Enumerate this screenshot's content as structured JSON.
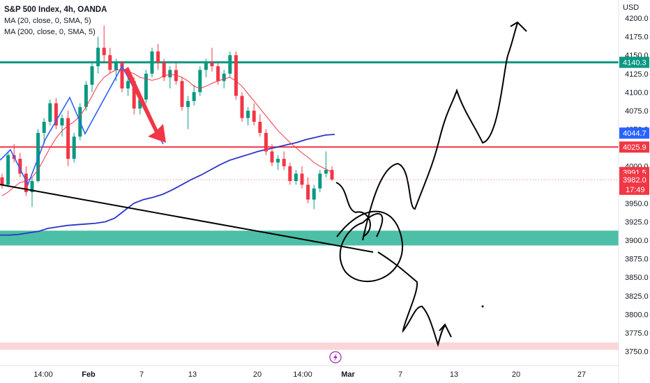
{
  "chart_data": {
    "type": "candlestick",
    "title": "S&P 500 Index, 4h, OANDA",
    "indicators": [
      "MA (20, close, 0, SMA, 5)",
      "MA (200, close, 0, SMA, 5)"
    ],
    "currency": "USD",
    "ylim": [
      3740,
      4210
    ],
    "y_ticks": [
      "4200.0",
      "4175.0",
      "4150.0",
      "4125.0",
      "4100.0",
      "4075.0",
      "4050.0",
      "4025.0",
      "4000.0",
      "3975.0",
      "3950.0",
      "3925.0",
      "3900.0",
      "3875.0",
      "3850.0",
      "3825.0",
      "3800.0",
      "3775.0",
      "3750.0"
    ],
    "x_ticks": [
      "14:00",
      "Feb",
      "7",
      "13",
      "20",
      "14:00",
      "Mar",
      "7",
      "13",
      "20",
      "27"
    ],
    "grid": false,
    "legend_position": "top-left",
    "candles": [
      [
        3985,
        3990,
        3970,
        3975
      ],
      [
        3975,
        4020,
        3972,
        4015
      ],
      [
        4015,
        4030,
        4005,
        4010
      ],
      [
        4010,
        4018,
        3985,
        3990
      ],
      [
        3990,
        4000,
        3960,
        3965
      ],
      [
        3965,
        3985,
        3945,
        3980
      ],
      [
        3980,
        4050,
        3978,
        4045
      ],
      [
        4045,
        4065,
        4030,
        4060
      ],
      [
        4060,
        4090,
        4055,
        4085
      ],
      [
        4085,
        4092,
        4050,
        4055
      ],
      [
        4055,
        4070,
        4040,
        4065
      ],
      [
        4065,
        4075,
        4000,
        4010
      ],
      [
        4010,
        4045,
        4005,
        4040
      ],
      [
        4040,
        4085,
        4035,
        4080
      ],
      [
        4080,
        4115,
        4075,
        4110
      ],
      [
        4110,
        4140,
        4100,
        4135
      ],
      [
        4135,
        4175,
        4125,
        4160
      ],
      [
        4160,
        4190,
        4140,
        4150
      ],
      [
        4150,
        4160,
        4125,
        4130
      ],
      [
        4130,
        4145,
        4115,
        4140
      ],
      [
        4140,
        4142,
        4100,
        4105
      ],
      [
        4105,
        4120,
        4095,
        4115
      ],
      [
        4115,
        4120,
        4070,
        4078
      ],
      [
        4078,
        4095,
        4070,
        4090
      ],
      [
        4090,
        4130,
        4085,
        4125
      ],
      [
        4125,
        4160,
        4120,
        4155
      ],
      [
        4155,
        4165,
        4130,
        4140
      ],
      [
        4140,
        4145,
        4115,
        4120
      ],
      [
        4120,
        4135,
        4105,
        4130
      ],
      [
        4130,
        4140,
        4110,
        4115
      ],
      [
        4115,
        4120,
        4075,
        4080
      ],
      [
        4080,
        4095,
        4050,
        4088
      ],
      [
        4088,
        4110,
        4082,
        4100
      ],
      [
        4100,
        4135,
        4095,
        4130
      ],
      [
        4130,
        4145,
        4120,
        4140
      ],
      [
        4140,
        4160,
        4128,
        4135
      ],
      [
        4135,
        4140,
        4110,
        4115
      ],
      [
        4115,
        4130,
        4105,
        4125
      ],
      [
        4125,
        4155,
        4120,
        4150
      ],
      [
        4150,
        4155,
        4090,
        4095
      ],
      [
        4095,
        4100,
        4060,
        4065
      ],
      [
        4065,
        4080,
        4055,
        4075
      ],
      [
        4075,
        4085,
        4055,
        4060
      ],
      [
        4060,
        4070,
        4040,
        4045
      ],
      [
        4045,
        4050,
        4015,
        4020
      ],
      [
        4020,
        4030,
        4000,
        4005
      ],
      [
        4005,
        4015,
        3995,
        4010
      ],
      [
        4010,
        4020,
        3995,
        4000
      ],
      [
        4000,
        4005,
        3975,
        3980
      ],
      [
        3980,
        3995,
        3975,
        3990
      ],
      [
        3990,
        4000,
        3970,
        3975
      ],
      [
        3975,
        3985,
        3950,
        3955
      ],
      [
        3955,
        3975,
        3942,
        3970
      ],
      [
        3970,
        3995,
        3965,
        3990
      ],
      [
        3990,
        4020,
        3985,
        3995
      ],
      [
        3995,
        4000,
        3980,
        3982
      ]
    ],
    "ma20": [
      3960,
      3965,
      3972,
      3978,
      3980,
      3985,
      3995,
      4010,
      4025,
      4038,
      4048,
      4055,
      4060,
      4068,
      4080,
      4095,
      4110,
      4120,
      4126,
      4130,
      4130,
      4128,
      4125,
      4120,
      4118,
      4116,
      4118,
      4122,
      4124,
      4123,
      4120,
      4115,
      4108,
      4105,
      4108,
      4112,
      4115,
      4118,
      4120,
      4115,
      4108,
      4098,
      4088,
      4078,
      4068,
      4058,
      4048,
      4040,
      4032,
      4025,
      4018,
      4012,
      4005,
      4000,
      3996,
      3992
    ],
    "ma200": [
      3907,
      3907,
      3908,
      3910,
      3912,
      3916,
      3918,
      3920,
      3921,
      3922,
      3923,
      3925,
      3930,
      3940,
      3950,
      3955,
      3958,
      3962,
      3968,
      3975,
      3982,
      3988,
      3995,
      4002,
      4008,
      4012,
      4016,
      4020,
      4023,
      4026,
      4029,
      4032,
      4036,
      4039,
      4042,
      4043
    ],
    "horizontal_lines": [
      {
        "price": 4140.3,
        "label": "4140.3",
        "color": "#089981"
      },
      {
        "price": 4025.9,
        "label": "4025.9",
        "color": "#f23645"
      }
    ],
    "zones": [
      {
        "from": 3893,
        "to": 3913,
        "color": "#4cbfa6"
      },
      {
        "from": 3752,
        "to": 3762,
        "color": "#fbd5d8"
      }
    ],
    "price_labels": [
      {
        "price": 4044.7,
        "label": "4044.7",
        "color": "#2962ff"
      },
      {
        "price": 3991.5,
        "label": "3991.5",
        "color": "#f23645"
      },
      {
        "price": 3982.0,
        "label": "3982.0",
        "color": "#f23645"
      }
    ],
    "countdown": "17:49"
  },
  "colors": {
    "up": "#089981",
    "down": "#f23645",
    "ma20": "#f23645",
    "ma200": "#2b33c9",
    "zigzag": "#2962ff",
    "arrow": "#f23645",
    "drawing": "#000000"
  }
}
